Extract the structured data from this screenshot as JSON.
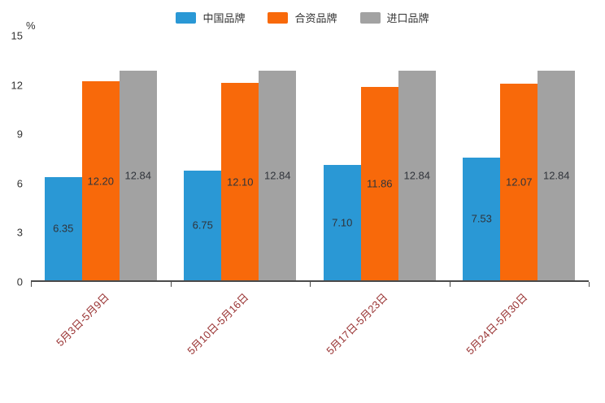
{
  "chart_data": {
    "type": "bar",
    "title": "",
    "xlabel": "",
    "ylabel": "%",
    "ylim": [
      0,
      15
    ],
    "yticks": [
      0,
      3,
      6,
      9,
      12,
      15
    ],
    "grid": false,
    "legend_position": "top",
    "categories": [
      "5月3日-5月9日",
      "5月10日-5月16日",
      "5月17日-5月23日",
      "5月24日-5月30日"
    ],
    "series": [
      {
        "name": "中国品牌",
        "color": "#2A98D5",
        "values": [
          6.35,
          6.75,
          7.1,
          7.53
        ]
      },
      {
        "name": "合资品牌",
        "color": "#F8690A",
        "values": [
          12.2,
          12.1,
          11.86,
          12.07
        ]
      },
      {
        "name": "进口品牌",
        "color": "#A2A2A2",
        "values": [
          12.84,
          12.84,
          12.84,
          12.84
        ]
      }
    ],
    "value_label_decimals": 2,
    "colors": {
      "axis_line": "#4a4a4a",
      "x_label_text": "#993333",
      "bar_label_text": "#30343b",
      "background": "#ffffff"
    }
  }
}
